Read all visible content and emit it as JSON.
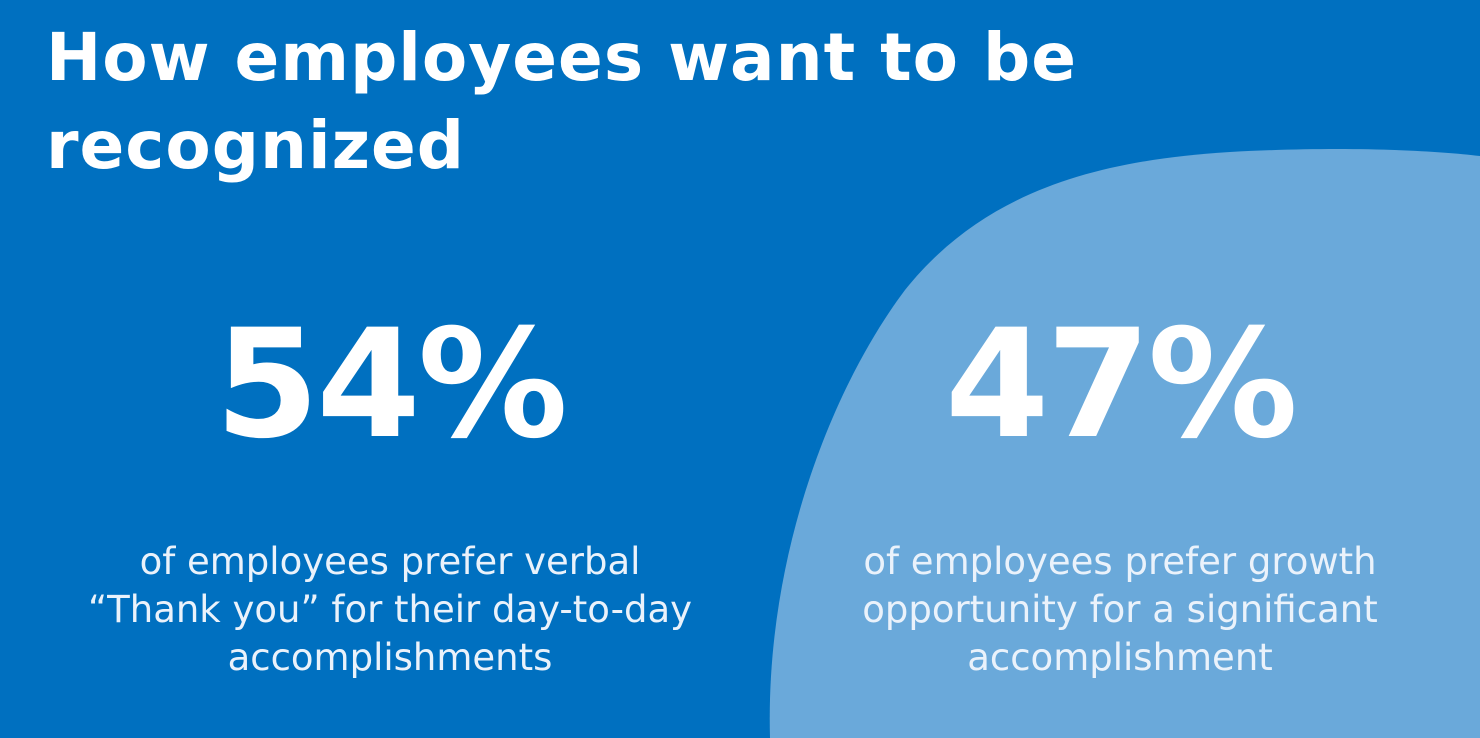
{
  "title": {
    "line1": "How employees want to be",
    "line2": "recognized"
  },
  "colors": {
    "background": "#0070c0",
    "highlight_blob": "#6aa9da",
    "text": "#ffffff"
  },
  "stats": [
    {
      "value": "54%",
      "description_lines": [
        "of employees prefer verbal",
        "“Thank you” for their day-to-day",
        "accomplishments"
      ]
    },
    {
      "value": "47%",
      "description_lines": [
        "of employees prefer growth",
        "opportunity for a significant",
        "accomplishment"
      ]
    }
  ]
}
